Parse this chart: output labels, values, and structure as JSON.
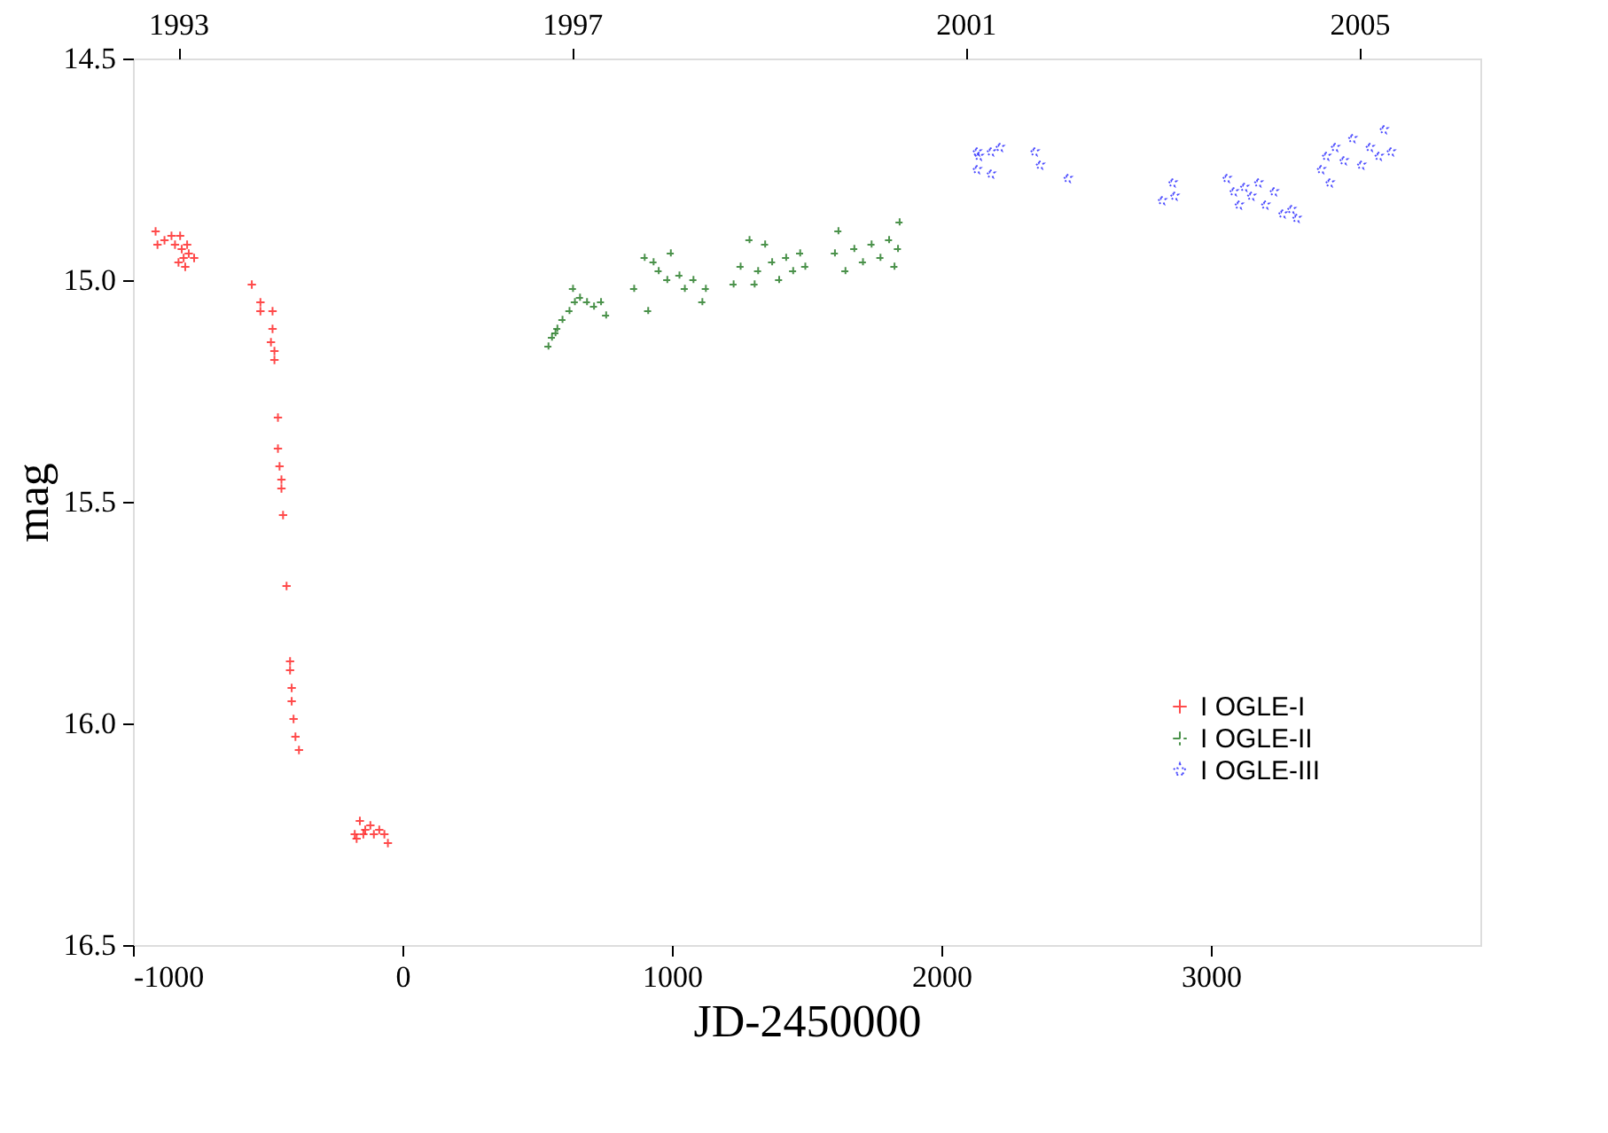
{
  "chart_data": {
    "type": "scatter",
    "xlabel": "JD-2450000",
    "ylabel": "mag",
    "xlim": [
      -1000,
      4000
    ],
    "xticks": [
      -1000,
      0,
      1000,
      2000,
      3000
    ],
    "ylim": [
      16.5,
      14.5
    ],
    "yticks": [
      {
        "value": 14.5,
        "label": "14.5"
      },
      {
        "value": 15.0,
        "label": "15.0"
      },
      {
        "value": 15.5,
        "label": "15.5"
      },
      {
        "value": 16.0,
        "label": "16.0"
      },
      {
        "value": 16.5,
        "label": "16.5"
      }
    ],
    "x2lim": [
      1992.54,
      2006.23
    ],
    "x2ticks": [
      1993,
      1997,
      2001,
      2005
    ],
    "grid": false,
    "legend": "bottom right",
    "series": [
      {
        "name": "I OGLE-I",
        "color": "#ff0000",
        "marker": "cross",
        "line_style": "solid",
        "x": [
          -916,
          -909,
          -883,
          -857,
          -844,
          -825,
          -819,
          -812,
          -806,
          -799,
          -793,
          -773,
          -831,
          -559,
          -527,
          -527,
          -482,
          -482,
          -488,
          -475,
          -475,
          -462,
          -462,
          -456,
          -449,
          -449,
          -443,
          -430,
          -417,
          -417,
          -411,
          -411,
          -404,
          -397,
          -384,
          -177,
          -170,
          -158,
          -138,
          -119,
          -106,
          -86,
          -67,
          -54,
          -145
        ],
        "values": [
          14.89,
          14.92,
          14.91,
          14.9,
          14.92,
          14.9,
          14.93,
          14.95,
          14.97,
          14.92,
          14.94,
          14.95,
          14.96,
          15.01,
          15.05,
          15.07,
          15.07,
          15.11,
          15.14,
          15.16,
          15.18,
          15.31,
          15.38,
          15.42,
          15.45,
          15.47,
          15.53,
          15.69,
          15.86,
          15.88,
          15.92,
          15.95,
          15.99,
          16.03,
          16.06,
          16.25,
          16.26,
          16.22,
          16.24,
          16.23,
          16.25,
          16.24,
          16.25,
          16.27,
          16.25
        ]
      },
      {
        "name": "I OGLE-II",
        "color": "#006400",
        "marker": "cross",
        "line_style": "dashed",
        "x": [
          542,
          555,
          575,
          594,
          620,
          640,
          659,
          685,
          711,
          737,
          633,
          756,
          568,
          860,
          899,
          912,
          932,
          951,
          983,
          996,
          1028,
          1048,
          1080,
          1113,
          1126,
          1229,
          1255,
          1288,
          1320,
          1346,
          1372,
          1398,
          1424,
          1450,
          1476,
          1495,
          1307,
          1605,
          1618,
          1644,
          1677,
          1709,
          1741,
          1774,
          1806,
          1826,
          1845,
          1839
        ],
        "values": [
          15.15,
          15.13,
          15.11,
          15.09,
          15.07,
          15.05,
          15.04,
          15.05,
          15.06,
          15.05,
          15.02,
          15.08,
          15.12,
          15.02,
          14.95,
          15.07,
          14.96,
          14.98,
          15.0,
          14.94,
          14.99,
          15.02,
          15.0,
          15.05,
          15.02,
          15.01,
          14.97,
          14.91,
          14.98,
          14.92,
          14.96,
          15.0,
          14.95,
          14.98,
          14.94,
          14.97,
          15.01,
          14.94,
          14.89,
          14.98,
          14.93,
          14.96,
          14.92,
          14.95,
          14.91,
          14.97,
          14.87,
          14.93
        ]
      },
      {
        "name": "I OGLE-III",
        "color": "#0000ff",
        "marker": "star",
        "line_style": "dotted",
        "x": [
          2130,
          2137,
          2130,
          2182,
          2182,
          2215,
          2344,
          2364,
          2467,
          2817,
          2856,
          2863,
          3057,
          3083,
          3122,
          3148,
          3174,
          3200,
          3232,
          3264,
          3297,
          3316,
          3102,
          3407,
          3426,
          3439,
          3459,
          3491,
          3523,
          3556,
          3588,
          3621,
          3640,
          3666
        ],
        "values": [
          14.71,
          14.72,
          14.75,
          14.76,
          14.71,
          14.7,
          14.71,
          14.74,
          14.77,
          14.82,
          14.78,
          14.81,
          14.77,
          14.8,
          14.79,
          14.81,
          14.78,
          14.83,
          14.8,
          14.85,
          14.84,
          14.86,
          14.83,
          14.75,
          14.72,
          14.78,
          14.7,
          14.73,
          14.68,
          14.74,
          14.7,
          14.72,
          14.66,
          14.71
        ]
      }
    ]
  }
}
